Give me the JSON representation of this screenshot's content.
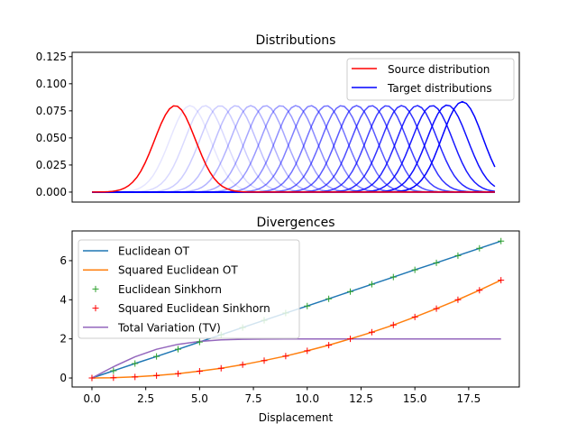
{
  "colors": {
    "source": "#ff0000",
    "target": "#0000ff",
    "euclidean_ot": "#1f77b4",
    "squared_ot": "#ff7f0e",
    "euclidean_sinkhorn": "#2ca02c",
    "squared_sinkhorn": "#ff0000",
    "tv": "#9467bd"
  },
  "chart_data": [
    {
      "type": "line",
      "title": "Distributions",
      "xlabel": "",
      "ylabel": "",
      "xlim": [
        -4.9,
        105
      ],
      "ylim": [
        -0.0092,
        0.129
      ],
      "yticks": [
        0.0,
        0.025,
        0.05,
        0.075,
        0.1,
        0.125
      ],
      "ytick_labels": [
        "0.000",
        "0.025",
        "0.050",
        "0.075",
        "0.100",
        "0.125"
      ],
      "x_domain": [
        0,
        99
      ],
      "std": 5,
      "source_mean": 20.4,
      "target_means": [
        20.4,
        24.1,
        27.8,
        31.5,
        35.3,
        39.0,
        42.7,
        46.4,
        50.1,
        53.8,
        57.6,
        61.3,
        65.0,
        68.7,
        72.4,
        76.1,
        79.9,
        83.6,
        87.3,
        91.0
      ],
      "legend": [
        "Source distribution",
        "Target distributions"
      ],
      "legend_position": "upper right",
      "grid": false
    },
    {
      "type": "line",
      "title": "Divergences",
      "xlabel": "Displacement",
      "ylabel": "",
      "xlim": [
        -0.92,
        19.85
      ],
      "ylim": [
        -0.46,
        7.52
      ],
      "xticks": [
        0,
        2.5,
        5,
        7.5,
        10,
        12.5,
        15,
        17.5
      ],
      "xtick_labels": [
        "0.0",
        "2.5",
        "5.0",
        "7.5",
        "10.0",
        "12.5",
        "15.0",
        "17.5"
      ],
      "yticks": [
        0,
        2,
        4,
        6
      ],
      "ytick_labels": [
        "0",
        "2",
        "4",
        "6"
      ],
      "x": [
        0,
        1,
        2,
        3,
        4,
        5,
        6,
        7,
        8,
        9,
        10,
        11,
        12,
        13,
        14,
        15,
        16,
        17,
        18,
        19
      ],
      "series": [
        {
          "name": "Euclidean OT",
          "style": "line",
          "values": [
            0,
            0.37,
            0.74,
            1.1,
            1.47,
            1.84,
            2.21,
            2.58,
            2.95,
            3.32,
            3.68,
            4.05,
            4.42,
            4.79,
            5.16,
            5.53,
            5.89,
            6.26,
            6.63,
            7.0
          ]
        },
        {
          "name": "Squared Euclidean OT",
          "style": "line",
          "values": [
            0,
            0.014,
            0.055,
            0.125,
            0.22,
            0.35,
            0.5,
            0.68,
            0.89,
            1.12,
            1.39,
            1.68,
            2.0,
            2.34,
            2.71,
            3.12,
            3.55,
            4.0,
            4.49,
            5.0
          ]
        },
        {
          "name": "Euclidean Sinkhorn",
          "style": "marker",
          "values": [
            0,
            0.37,
            0.74,
            1.1,
            1.47,
            1.84,
            2.21,
            2.58,
            2.95,
            3.32,
            3.68,
            4.05,
            4.42,
            4.79,
            5.16,
            5.53,
            5.89,
            6.26,
            6.63,
            7.0
          ]
        },
        {
          "name": "Squared Euclidean Sinkhorn",
          "style": "marker",
          "values": [
            0,
            0.014,
            0.055,
            0.125,
            0.22,
            0.35,
            0.5,
            0.68,
            0.89,
            1.12,
            1.39,
            1.68,
            2.0,
            2.34,
            2.71,
            3.12,
            3.55,
            4.0,
            4.49,
            5.0
          ]
        },
        {
          "name": "Total Variation (TV)",
          "style": "line",
          "values": [
            0,
            0.58,
            1.08,
            1.47,
            1.72,
            1.87,
            1.95,
            1.98,
            1.99,
            2.0,
            2.0,
            2.0,
            2.0,
            2.0,
            2.0,
            2.0,
            2.0,
            2.0,
            2.0,
            2.0
          ]
        }
      ],
      "legend_position": "upper left",
      "grid": false
    }
  ]
}
